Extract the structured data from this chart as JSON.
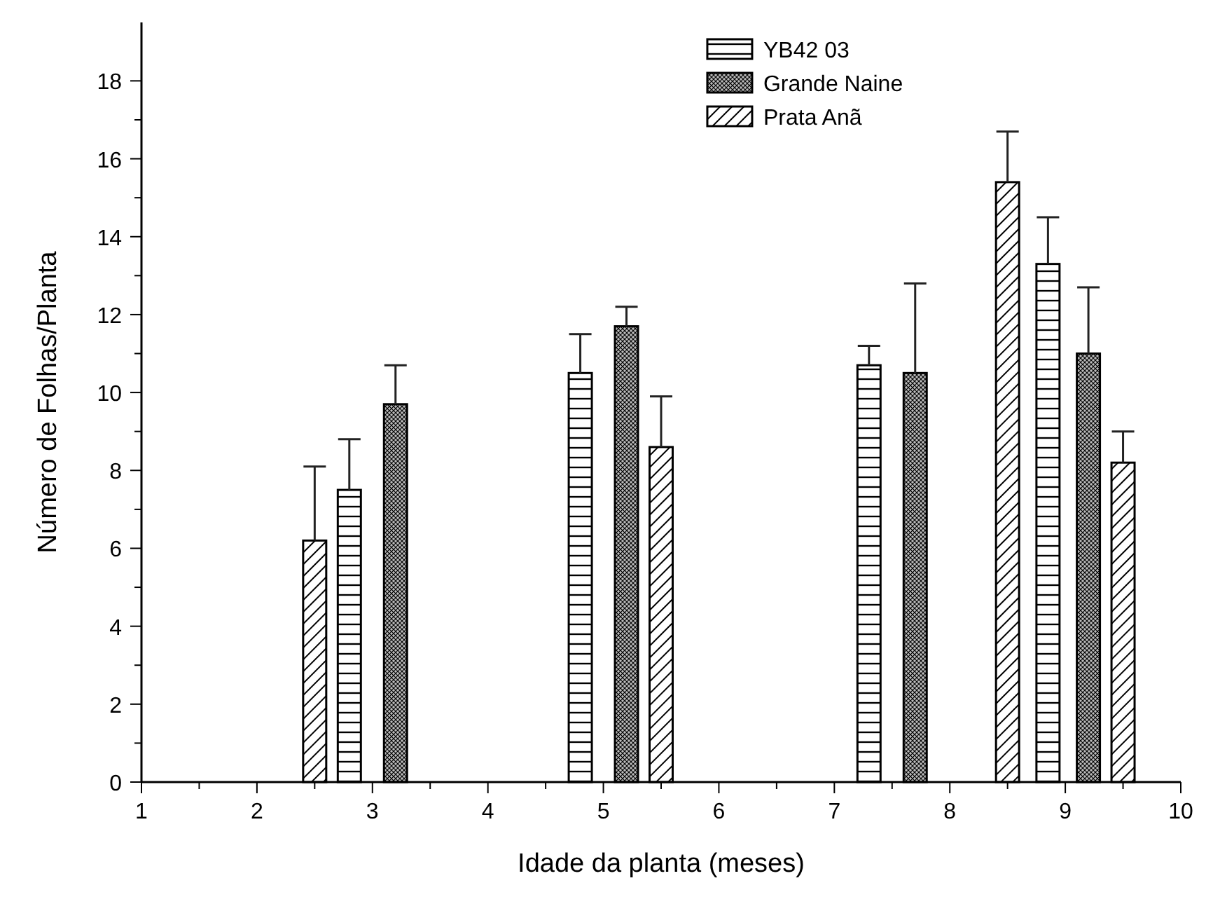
{
  "chart_data": {
    "type": "bar",
    "xlabel": "Idade da planta (meses)",
    "ylabel": "Número de Folhas/Planta",
    "xlim": [
      1,
      10
    ],
    "xticks": [
      1,
      {
        "value": 1.5,
        "label": null
      },
      2,
      {
        "value": 2.5,
        "label": null
      },
      3,
      {
        "value": 3.5,
        "label": null
      },
      4,
      {
        "value": 4.5,
        "label": null
      },
      5,
      {
        "value": 5.5,
        "label": null
      },
      6,
      {
        "value": 6.5,
        "label": null
      },
      7,
      {
        "value": 7.5,
        "label": null
      },
      8,
      {
        "value": 8.5,
        "label": null
      },
      9,
      {
        "value": 9.5,
        "label": null
      },
      10
    ],
    "ylim": [
      0,
      19.5
    ],
    "yticks": [
      0,
      {
        "value": 1,
        "label": null
      },
      2,
      {
        "value": 3,
        "label": null
      },
      4,
      {
        "value": 5,
        "label": null
      },
      6,
      {
        "value": 7,
        "label": null
      },
      8,
      {
        "value": 9,
        "label": null
      },
      10,
      {
        "value": 11,
        "label": null
      },
      12,
      {
        "value": 13,
        "label": null
      },
      14,
      {
        "value": 15,
        "label": null
      },
      16,
      {
        "value": 17,
        "label": null
      },
      18
    ],
    "grid": false,
    "legend": "top",
    "series": [
      {
        "name": "YB42 03",
        "color": "#000000",
        "x": [
          2.8,
          4.8,
          7.3,
          8.85
        ],
        "values": [
          7.5,
          10.5,
          10.7,
          13.3
        ],
        "errors": [
          [
            7.5,
            8.8
          ],
          [
            10.5,
            11.5
          ],
          [
            10.7,
            11.2
          ],
          [
            13.3,
            14.5
          ]
        ]
      },
      {
        "name": "Grande Naine",
        "color": "#000000",
        "x": [
          3.2,
          5.2,
          7.7,
          9.2
        ],
        "values": [
          9.7,
          11.7,
          10.5,
          11.0
        ],
        "errors": [
          [
            9.7,
            10.7
          ],
          [
            11.7,
            12.2
          ],
          [
            10.5,
            12.8
          ],
          [
            11.0,
            12.7
          ]
        ]
      },
      {
        "name": "Prata Anã",
        "color": "#000000",
        "x": [
          2.5,
          5.5,
          8.5,
          9.5
        ],
        "values": [
          6.2,
          8.6,
          15.4,
          8.2
        ],
        "errors": [
          [
            6.2,
            8.1
          ],
          [
            8.6,
            9.9
          ],
          [
            15.4,
            16.7
          ],
          [
            8.2,
            9.0
          ]
        ]
      }
    ]
  }
}
